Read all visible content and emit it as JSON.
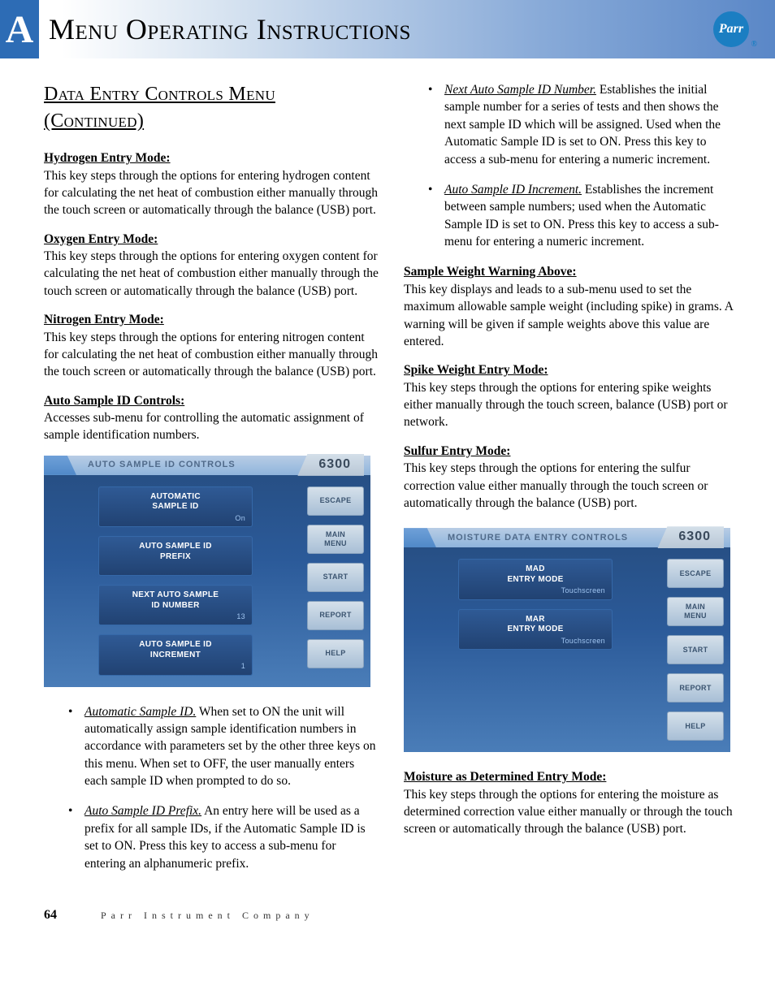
{
  "header": {
    "letter": "A",
    "title": "Menu Operating Instructions",
    "logo_text": "Parr",
    "logo_bg": "#1b7ec2"
  },
  "section_title": "Data Entry Controls Menu (Continued)",
  "left_col": {
    "items": [
      {
        "head": "Hydrogen Entry Mode:",
        "body": "This key steps through the options for entering hydrogen content for calculating the net heat of combustion either manually through the touch screen or automatically through the balance (USB) port."
      },
      {
        "head": "Oxygen Entry Mode:",
        "body": "This key steps through the options for entering oxygen content for calculating the net heat of combustion either manually through the touch screen or automatically through the balance (USB) port."
      },
      {
        "head": "Nitrogen Entry Mode:",
        "body": "This key steps through the options for entering nitrogen content for calculating the net heat of combustion either manually through the touch screen or automatically through the balance (USB) port."
      },
      {
        "head": "Auto Sample ID Controls:",
        "body": "Accesses sub-menu for controlling the automatic assignment of sample identification numbers."
      }
    ],
    "bullets": [
      {
        "label": "Automatic Sample ID.",
        "body": " When set to ON the unit will automatically assign sample identification numbers in accordance with parameters set by the other three keys on this menu.  When set to OFF, the user manually enters each sample ID when prompted to do so."
      },
      {
        "label": "Auto Sample ID Prefix.",
        "body": " An entry here will be used as a prefix for all sample IDs, if the Automatic Sample ID is set to ON.  Press this key to access a sub-menu for entering an alphanumeric prefix."
      }
    ]
  },
  "right_col": {
    "top_bullets": [
      {
        "label": "Next Auto Sample ID Number.",
        "body": " Establishes the initial sample number for a series of tests and then shows the next sample ID which will be assigned.  Used when the Automatic Sample ID is set to ON.  Press this key to access a sub-menu for entering a numeric increment."
      },
      {
        "label": "Auto Sample ID Increment.",
        "body": " Establishes the increment between sample numbers; used when the Automatic Sample ID is set to ON.  Press this key to access a sub-menu for entering a numeric increment."
      }
    ],
    "items": [
      {
        "head": "Sample Weight Warning Above:",
        "body": "This key displays and leads to a sub-menu used to set the maximum allowable sample weight (including spike) in grams.  A warning will be given if sample weights above this value are entered."
      },
      {
        "head": "Spike Weight Entry Mode:",
        "body": "This key steps through the options for entering spike weights either manually through the touch screen, balance (USB) port or network."
      },
      {
        "head": "Sulfur Entry Mode:",
        "body": "This key steps through the options for entering the sulfur correction value either manually through the touch screen or automatically through the balance (USB) port."
      }
    ],
    "items_after": [
      {
        "head": "Moisture as Determined Entry Mode:",
        "body": "This key steps through the options for entering the moisture as determined correction value either manually or through the touch screen or automatically through the balance (USB) port."
      }
    ]
  },
  "screenshot1": {
    "title": "AUTO SAMPLE ID CONTROLS",
    "model": "6300",
    "center_buttons": [
      {
        "label": "AUTOMATIC\nSAMPLE ID",
        "value": "On"
      },
      {
        "label": "AUTO SAMPLE ID\nPREFIX",
        "value": ""
      },
      {
        "label": "NEXT AUTO SAMPLE\nID NUMBER",
        "value": "13"
      },
      {
        "label": "AUTO SAMPLE ID\nINCREMENT",
        "value": "1"
      }
    ],
    "side_buttons": [
      "ESCAPE",
      "MAIN\nMENU",
      "START",
      "REPORT",
      "HELP"
    ]
  },
  "screenshot2": {
    "title": "MOISTURE DATA ENTRY CONTROLS",
    "model": "6300",
    "center_buttons": [
      {
        "label": "MAD\nENTRY MODE",
        "value": "Touchscreen"
      },
      {
        "label": "MAR\nENTRY MODE",
        "value": "Touchscreen"
      }
    ],
    "side_buttons": [
      "ESCAPE",
      "MAIN\nMENU",
      "START",
      "REPORT",
      "HELP"
    ]
  },
  "footer": {
    "page": "64",
    "company": "Parr Instrument Company"
  }
}
